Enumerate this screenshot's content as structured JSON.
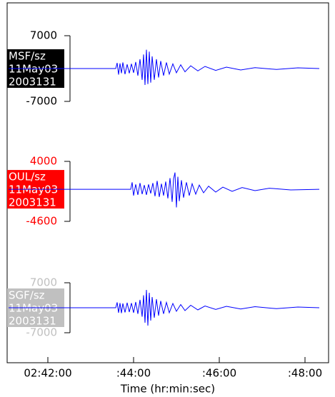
{
  "chart_data": {
    "type": "line",
    "x_label": "Time (hr:min:sec)",
    "xlim": [
      -57,
      393
    ],
    "xticks": [
      {
        "value": 0,
        "label": "02:42:00"
      },
      {
        "value": 120,
        "label": ":44:00"
      },
      {
        "value": 240,
        "label": ":46:00"
      },
      {
        "value": 360,
        "label": ":48:00"
      }
    ],
    "panels": [
      {
        "labels": [
          "MSF/sz",
          "11May03",
          "2003131"
        ],
        "label_color": "#000000",
        "color": "#0000ff",
        "ylim": [
          -7000,
          7000
        ],
        "yticks": [
          7000,
          -7000
        ],
        "x": [
          -55,
          95,
          97,
          99,
          101,
          103,
          105,
          108,
          111,
          114,
          117,
          120,
          123,
          126,
          129,
          132,
          134,
          136,
          138,
          140,
          142,
          144,
          146,
          149,
          152,
          155,
          158,
          162,
          166,
          170,
          175,
          180,
          186,
          192,
          200,
          210,
          220,
          235,
          250,
          270,
          290,
          320,
          350,
          380
        ],
        "values": [
          0,
          0,
          1200,
          -1300,
          1100,
          -1000,
          1300,
          -1200,
          900,
          -1000,
          1000,
          -900,
          1400,
          -1500,
          2000,
          -2400,
          3000,
          -3500,
          4000,
          -3300,
          3600,
          -3000,
          2600,
          -2400,
          2000,
          -1900,
          1600,
          -1500,
          1300,
          -1200,
          1000,
          -900,
          800,
          -700,
          600,
          -500,
          450,
          -400,
          300,
          -300,
          200,
          -200,
          150,
          0
        ]
      },
      {
        "labels": [
          "OUL/sz",
          "11May03",
          "2003131"
        ],
        "label_color": "#ff0000",
        "color": "#0000ff",
        "ylim": [
          -4600,
          4000
        ],
        "yticks": [
          4000,
          -4600
        ],
        "x": [
          -55,
          116,
          118,
          120,
          123,
          126,
          129,
          132,
          135,
          138,
          141,
          144,
          147,
          150,
          153,
          156,
          159,
          162,
          165,
          168,
          171,
          174,
          176,
          178,
          180,
          182,
          184,
          187,
          190,
          194,
          198,
          202,
          207,
          212,
          218,
          225,
          235,
          245,
          258,
          272,
          290,
          310,
          340,
          380
        ],
        "values": [
          0,
          0,
          1000,
          -900,
          700,
          -800,
          900,
          -700,
          600,
          -800,
          700,
          -600,
          900,
          -1000,
          1200,
          -1100,
          800,
          -900,
          1100,
          -1300,
          1600,
          -1800,
          1500,
          2400,
          -2600,
          1800,
          -1700,
          1300,
          -1200,
          1000,
          -900,
          800,
          -700,
          600,
          -500,
          450,
          -400,
          300,
          -300,
          250,
          -200,
          150,
          -100,
          0
        ]
      },
      {
        "labels": [
          "SGF/sz",
          "11May03",
          "2003131"
        ],
        "label_color": "#c0c0c0",
        "color": "#0000ff",
        "ylim": [
          -7000,
          7000
        ],
        "yticks": [
          7000,
          -7000
        ],
        "x": [
          -55,
          95,
          97,
          99,
          101,
          103,
          105,
          108,
          111,
          114,
          117,
          120,
          123,
          126,
          129,
          132,
          134,
          136,
          138,
          140,
          142,
          144,
          146,
          149,
          152,
          155,
          158,
          162,
          166,
          170,
          175,
          180,
          186,
          192,
          200,
          210,
          220,
          235,
          250,
          270,
          290,
          320,
          350,
          380
        ],
        "values": [
          0,
          0,
          1500,
          -1400,
          1300,
          -1500,
          1200,
          -1300,
          1400,
          -1200,
          1300,
          -1400,
          1600,
          -1700,
          2200,
          -2500,
          3500,
          -4200,
          5000,
          -5000,
          4200,
          -3600,
          3000,
          -2800,
          2400,
          -2200,
          1900,
          -1700,
          1500,
          -1400,
          1200,
          -1000,
          900,
          -800,
          700,
          -600,
          500,
          -450,
          400,
          -350,
          300,
          -250,
          200,
          0
        ]
      }
    ]
  }
}
